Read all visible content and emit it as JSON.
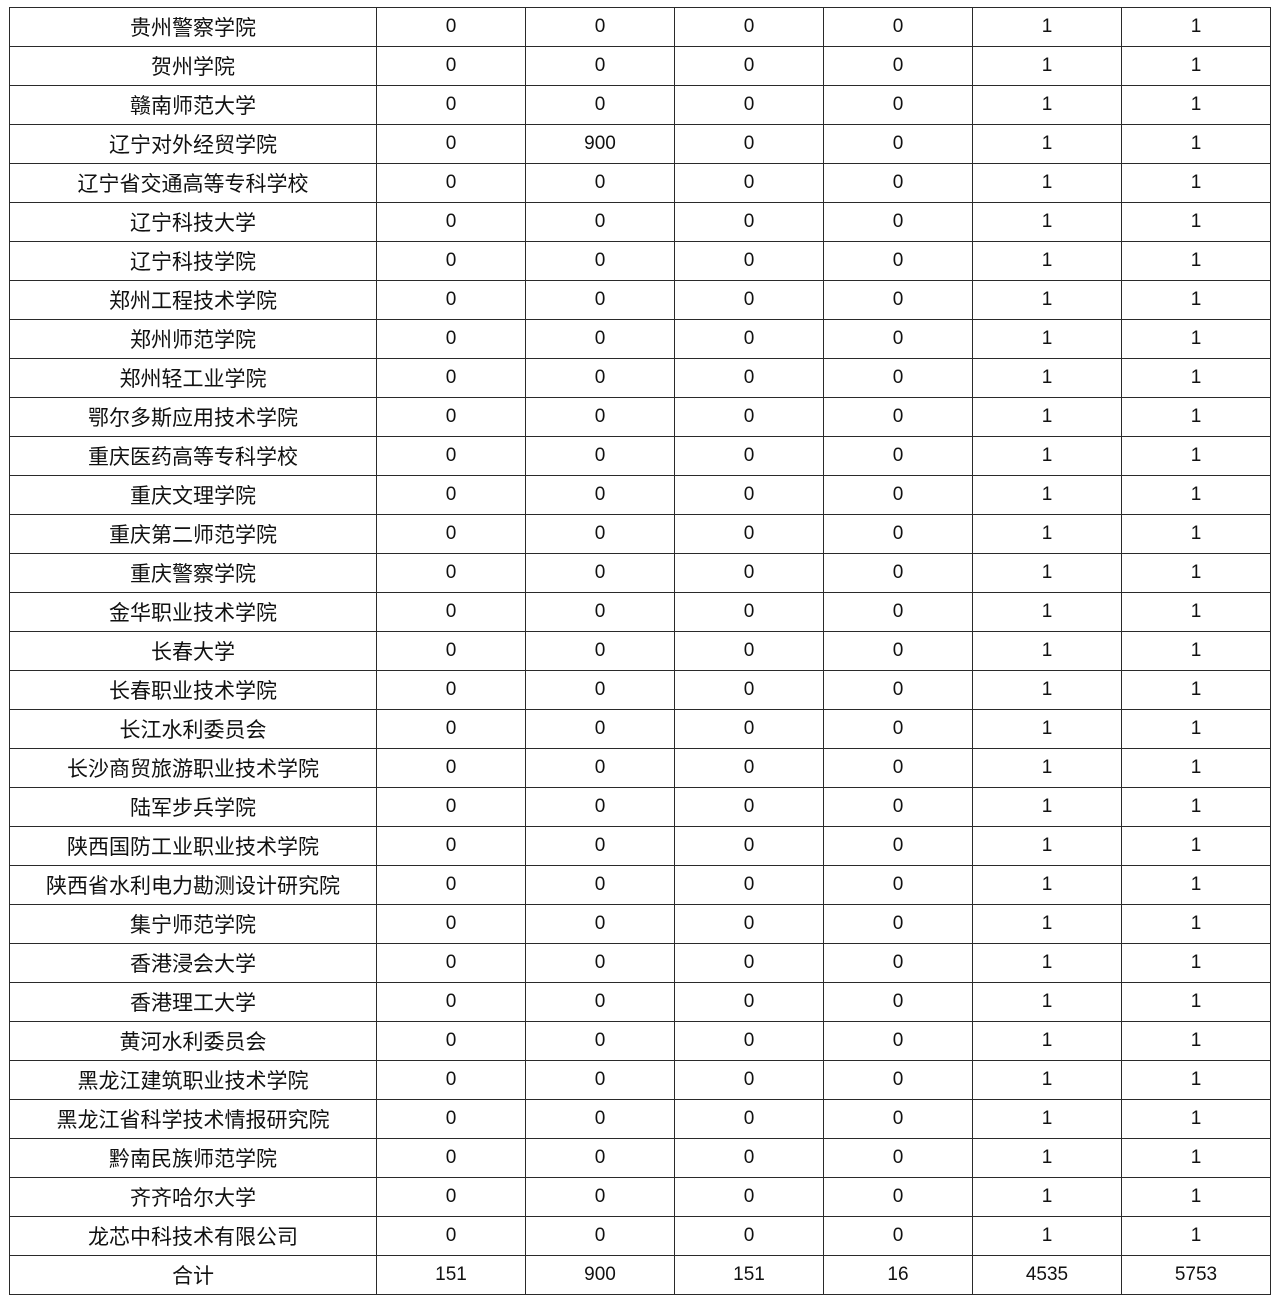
{
  "table": {
    "rows": [
      {
        "name": "贵州警察学院",
        "values": [
          "0",
          "0",
          "0",
          "0",
          "1",
          "1"
        ]
      },
      {
        "name": "贺州学院",
        "values": [
          "0",
          "0",
          "0",
          "0",
          "1",
          "1"
        ]
      },
      {
        "name": "赣南师范大学",
        "values": [
          "0",
          "0",
          "0",
          "0",
          "1",
          "1"
        ]
      },
      {
        "name": "辽宁对外经贸学院",
        "values": [
          "0",
          "900",
          "0",
          "0",
          "1",
          "1"
        ]
      },
      {
        "name": "辽宁省交通高等专科学校",
        "values": [
          "0",
          "0",
          "0",
          "0",
          "1",
          "1"
        ]
      },
      {
        "name": "辽宁科技大学",
        "values": [
          "0",
          "0",
          "0",
          "0",
          "1",
          "1"
        ]
      },
      {
        "name": "辽宁科技学院",
        "values": [
          "0",
          "0",
          "0",
          "0",
          "1",
          "1"
        ]
      },
      {
        "name": "郑州工程技术学院",
        "values": [
          "0",
          "0",
          "0",
          "0",
          "1",
          "1"
        ]
      },
      {
        "name": "郑州师范学院",
        "values": [
          "0",
          "0",
          "0",
          "0",
          "1",
          "1"
        ]
      },
      {
        "name": "郑州轻工业学院",
        "values": [
          "0",
          "0",
          "0",
          "0",
          "1",
          "1"
        ]
      },
      {
        "name": "鄂尔多斯应用技术学院",
        "values": [
          "0",
          "0",
          "0",
          "0",
          "1",
          "1"
        ]
      },
      {
        "name": "重庆医药高等专科学校",
        "values": [
          "0",
          "0",
          "0",
          "0",
          "1",
          "1"
        ]
      },
      {
        "name": "重庆文理学院",
        "values": [
          "0",
          "0",
          "0",
          "0",
          "1",
          "1"
        ]
      },
      {
        "name": "重庆第二师范学院",
        "values": [
          "0",
          "0",
          "0",
          "0",
          "1",
          "1"
        ]
      },
      {
        "name": "重庆警察学院",
        "values": [
          "0",
          "0",
          "0",
          "0",
          "1",
          "1"
        ]
      },
      {
        "name": "金华职业技术学院",
        "values": [
          "0",
          "0",
          "0",
          "0",
          "1",
          "1"
        ]
      },
      {
        "name": "长春大学",
        "values": [
          "0",
          "0",
          "0",
          "0",
          "1",
          "1"
        ]
      },
      {
        "name": "长春职业技术学院",
        "values": [
          "0",
          "0",
          "0",
          "0",
          "1",
          "1"
        ]
      },
      {
        "name": "长江水利委员会",
        "values": [
          "0",
          "0",
          "0",
          "0",
          "1",
          "1"
        ]
      },
      {
        "name": "长沙商贸旅游职业技术学院",
        "values": [
          "0",
          "0",
          "0",
          "0",
          "1",
          "1"
        ]
      },
      {
        "name": "陆军步兵学院",
        "values": [
          "0",
          "0",
          "0",
          "0",
          "1",
          "1"
        ]
      },
      {
        "name": "陕西国防工业职业技术学院",
        "values": [
          "0",
          "0",
          "0",
          "0",
          "1",
          "1"
        ]
      },
      {
        "name": "陕西省水利电力勘测设计研究院",
        "values": [
          "0",
          "0",
          "0",
          "0",
          "1",
          "1"
        ]
      },
      {
        "name": "集宁师范学院",
        "values": [
          "0",
          "0",
          "0",
          "0",
          "1",
          "1"
        ]
      },
      {
        "name": "香港浸会大学",
        "values": [
          "0",
          "0",
          "0",
          "0",
          "1",
          "1"
        ]
      },
      {
        "name": "香港理工大学",
        "values": [
          "0",
          "0",
          "0",
          "0",
          "1",
          "1"
        ]
      },
      {
        "name": "黄河水利委员会",
        "values": [
          "0",
          "0",
          "0",
          "0",
          "1",
          "1"
        ]
      },
      {
        "name": "黑龙江建筑职业技术学院",
        "values": [
          "0",
          "0",
          "0",
          "0",
          "1",
          "1"
        ]
      },
      {
        "name": "黑龙江省科学技术情报研究院",
        "values": [
          "0",
          "0",
          "0",
          "0",
          "1",
          "1"
        ]
      },
      {
        "name": "黔南民族师范学院",
        "values": [
          "0",
          "0",
          "0",
          "0",
          "1",
          "1"
        ]
      },
      {
        "name": "齐齐哈尔大学",
        "values": [
          "0",
          "0",
          "0",
          "0",
          "1",
          "1"
        ]
      },
      {
        "name": "龙芯中科技术有限公司",
        "values": [
          "0",
          "0",
          "0",
          "0",
          "1",
          "1"
        ]
      }
    ],
    "total": {
      "name": "合计",
      "values": [
        "151",
        "900",
        "151",
        "16",
        "4535",
        "5753"
      ]
    }
  }
}
